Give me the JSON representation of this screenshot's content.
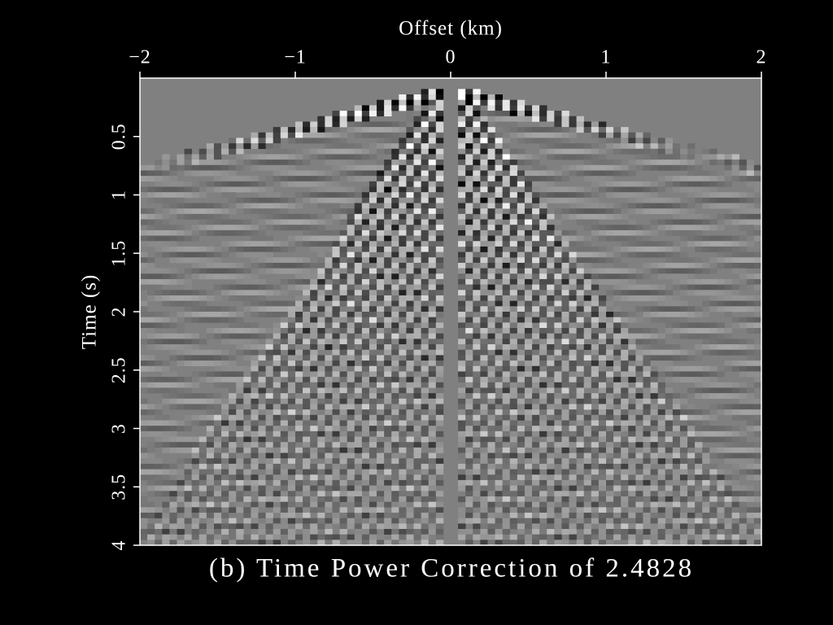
{
  "chart_data": {
    "type": "image",
    "title": "(b) Time Power Correction of 2.4828",
    "x_label": "Offset (km)",
    "y_label": "Time (s)",
    "xlim": [
      -2,
      2
    ],
    "xticks": [
      {
        "value": -2,
        "label": "−2"
      },
      {
        "value": -1,
        "label": "−1"
      },
      0,
      1,
      2
    ],
    "ylim": [
      0,
      4
    ],
    "yticks": [
      0.5,
      1,
      1.5,
      2,
      2.5,
      3,
      3.5,
      4
    ]
  }
}
